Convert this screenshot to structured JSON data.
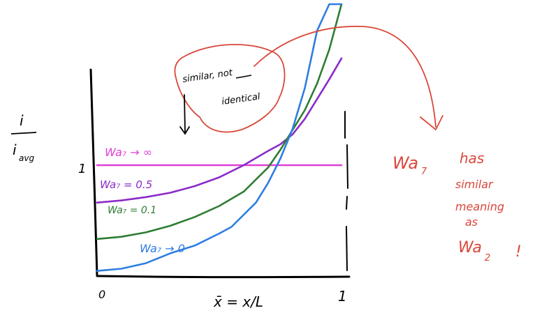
{
  "chart_data": {
    "type": "line",
    "ylabel_num": "i",
    "ylabel_den": "i",
    "ylabel_den_sub": "avg",
    "xlabel": "x̄ = x/L",
    "xticks": [
      {
        "value": 0,
        "label": "0"
      },
      {
        "value": 1,
        "label": "1"
      }
    ],
    "yticks": [
      {
        "value": 1,
        "label": "1"
      }
    ],
    "series": [
      {
        "name": "Wa₇ → ∞",
        "color": "#e040d8",
        "x": [
          0,
          0.1,
          0.2,
          0.3,
          0.4,
          0.5,
          0.6,
          0.7,
          0.8,
          0.9,
          1.0
        ],
        "y": [
          1.0,
          1.0,
          1.0,
          1.0,
          1.0,
          1.0,
          1.0,
          1.0,
          1.0,
          1.0,
          1.0
        ]
      },
      {
        "name": "Wa₇ = 0.5",
        "color": "#8a2bc8",
        "x": [
          0,
          0.1,
          0.2,
          0.3,
          0.4,
          0.5,
          0.6,
          0.7,
          0.75,
          0.8,
          0.85,
          0.9,
          0.95,
          1.0
        ],
        "y": [
          0.66,
          0.68,
          0.71,
          0.75,
          0.81,
          0.89,
          1.0,
          1.13,
          1.19,
          1.28,
          1.42,
          1.6,
          1.78,
          1.97
        ]
      },
      {
        "name": "Wa₇ = 0.1",
        "color": "#2e7d32",
        "x": [
          0,
          0.1,
          0.2,
          0.3,
          0.4,
          0.5,
          0.6,
          0.7,
          0.75,
          0.8,
          0.85,
          0.9,
          0.95,
          1.0
        ],
        "y": [
          0.33,
          0.35,
          0.39,
          0.45,
          0.53,
          0.63,
          0.76,
          0.98,
          1.14,
          1.32,
          1.5,
          1.74,
          2.05,
          2.52
        ]
      },
      {
        "name": "Wa₇ → 0",
        "color": "#2f7de1",
        "x": [
          0,
          0.1,
          0.2,
          0.3,
          0.4,
          0.5,
          0.55,
          0.6,
          0.65,
          0.7,
          0.75,
          0.8,
          0.85,
          0.9,
          0.95,
          1.0
        ],
        "y": [
          0.04,
          0.06,
          0.11,
          0.2,
          0.27,
          0.38,
          0.44,
          0.55,
          0.66,
          0.84,
          1.06,
          1.33,
          1.7,
          2.22,
          2.9,
          3.75
        ]
      }
    ],
    "ylim": [
      0,
      3.8
    ],
    "xlim": [
      0,
      1
    ]
  },
  "annotations": {
    "bubble_line1": "similar, not",
    "bubble_not": "not",
    "bubble_line2": "identical",
    "right_wa": "Wa",
    "right_wa_sub": "7",
    "right_has": "has",
    "right_similar": "similar",
    "right_meaning": "meaning",
    "right_as": "as",
    "right_wa2": "Wa",
    "right_wa2_sub": "2",
    "right_bang": "!",
    "ink_red": "#d9473a"
  }
}
